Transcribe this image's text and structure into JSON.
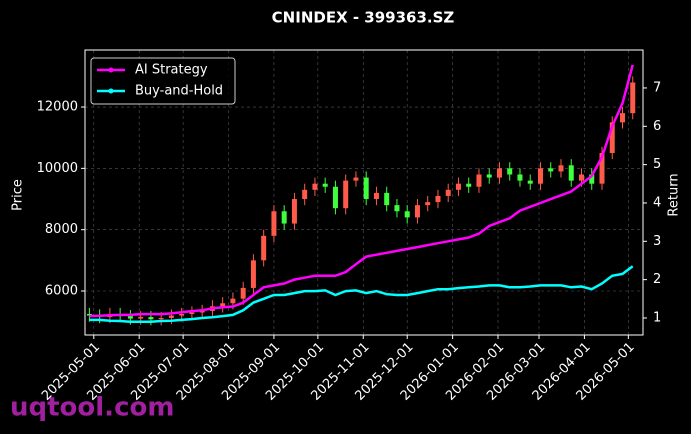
{
  "chart_data": {
    "type": "candlestick",
    "title": "CNINDEX - 399363.SZ",
    "ylabel": "Price",
    "y2label": "Return",
    "x": [
      "2025-04-28",
      "2025-05-05",
      "2025-05-12",
      "2025-05-19",
      "2025-05-26",
      "2025-06-02",
      "2025-06-09",
      "2025-06-16",
      "2025-06-23",
      "2025-06-30",
      "2025-07-07",
      "2025-07-14",
      "2025-07-21",
      "2025-07-28",
      "2025-08-04",
      "2025-08-11",
      "2025-08-18",
      "2025-08-25",
      "2025-09-01",
      "2025-09-08",
      "2025-09-15",
      "2025-09-22",
      "2025-09-29",
      "2025-10-06",
      "2025-10-13",
      "2025-10-20",
      "2025-10-27",
      "2025-11-03",
      "2025-11-10",
      "2025-11-17",
      "2025-11-24",
      "2025-12-01",
      "2025-12-08",
      "2025-12-15",
      "2025-12-22",
      "2025-12-29",
      "2026-01-05",
      "2026-01-12",
      "2026-01-19",
      "2026-01-26",
      "2026-02-02",
      "2026-02-09",
      "2026-02-16",
      "2026-02-23",
      "2026-03-02",
      "2026-03-09",
      "2026-03-16",
      "2026-03-23",
      "2026-03-30",
      "2026-04-06",
      "2026-04-13",
      "2026-04-20",
      "2026-04-27",
      "2026-05-04"
    ],
    "open": [
      5250,
      5200,
      5150,
      5250,
      5180,
      5100,
      5150,
      5080,
      5120,
      5200,
      5250,
      5300,
      5350,
      5500,
      5600,
      5750,
      6100,
      7000,
      7800,
      8600,
      8200,
      9000,
      9300,
      9500,
      9400,
      8700,
      9600,
      9700,
      9000,
      9200,
      8800,
      8600,
      8400,
      8800,
      8900,
      9100,
      9300,
      9500,
      9400,
      9800,
      9700,
      10000,
      9800,
      9600,
      9500,
      10000,
      9900,
      10100,
      9600,
      9800,
      9500,
      10500,
      11500,
      11800
    ],
    "high": [
      5450,
      5400,
      5450,
      5450,
      5380,
      5350,
      5350,
      5320,
      5400,
      5450,
      5500,
      5550,
      5700,
      5800,
      5950,
      6300,
      7200,
      8000,
      8800,
      8800,
      9200,
      9500,
      9700,
      9700,
      9600,
      9800,
      9900,
      9900,
      9400,
      9400,
      9000,
      8800,
      9000,
      9100,
      9300,
      9500,
      9700,
      9700,
      10000,
      10000,
      10200,
      10200,
      10000,
      9800,
      10200,
      10200,
      10300,
      10300,
      10000,
      10000,
      10700,
      11700,
      12000,
      13000
    ],
    "low": [
      5000,
      4950,
      4950,
      4980,
      4900,
      4900,
      4880,
      4880,
      4920,
      5000,
      5050,
      5100,
      5150,
      5300,
      5400,
      5550,
      5900,
      6800,
      7600,
      8000,
      8000,
      8800,
      9100,
      9200,
      8500,
      8500,
      9400,
      8800,
      8800,
      8600,
      8400,
      8200,
      8200,
      8600,
      8700,
      8900,
      9100,
      9200,
      9200,
      9500,
      9500,
      9600,
      9400,
      9300,
      9300,
      9700,
      9700,
      9400,
      9400,
      9300,
      9300,
      10300,
      11300,
      11600
    ],
    "close": [
      5200,
      5150,
      5250,
      5180,
      5100,
      5150,
      5080,
      5120,
      5200,
      5250,
      5300,
      5350,
      5500,
      5600,
      5750,
      6100,
      7000,
      7800,
      8600,
      8200,
      9000,
      9300,
      9500,
      9400,
      8700,
      9600,
      9700,
      9000,
      9200,
      8800,
      8600,
      8400,
      8800,
      8900,
      9100,
      9300,
      9500,
      9400,
      9800,
      9700,
      10000,
      9800,
      9600,
      9500,
      10000,
      9900,
      10100,
      9600,
      9800,
      9500,
      10500,
      11500,
      11800,
      12800
    ],
    "up_color": "#ff5a4a",
    "down_color": "#3dff3d",
    "series": [
      {
        "name": "AI Strategy",
        "color": "#ff00ff",
        "axis": "y2",
        "values": [
          1.05,
          1.06,
          1.07,
          1.08,
          1.08,
          1.1,
          1.1,
          1.1,
          1.12,
          1.15,
          1.18,
          1.2,
          1.25,
          1.28,
          1.3,
          1.4,
          1.6,
          1.8,
          1.85,
          1.9,
          2.0,
          2.05,
          2.1,
          2.1,
          2.1,
          2.2,
          2.4,
          2.6,
          2.65,
          2.7,
          2.75,
          2.8,
          2.85,
          2.9,
          2.95,
          3.0,
          3.05,
          3.1,
          3.2,
          3.4,
          3.5,
          3.6,
          3.8,
          3.9,
          4.0,
          4.1,
          4.2,
          4.3,
          4.5,
          4.7,
          5.2,
          6.0,
          6.6,
          7.6
        ]
      },
      {
        "name": "Buy-and-Hold",
        "color": "#00ffff",
        "axis": "y2",
        "values": [
          0.95,
          0.95,
          0.93,
          0.92,
          0.9,
          0.9,
          0.9,
          0.92,
          0.93,
          0.95,
          0.97,
          1.0,
          1.02,
          1.05,
          1.08,
          1.2,
          1.4,
          1.5,
          1.6,
          1.6,
          1.65,
          1.7,
          1.7,
          1.72,
          1.6,
          1.7,
          1.72,
          1.65,
          1.7,
          1.62,
          1.6,
          1.6,
          1.65,
          1.7,
          1.75,
          1.75,
          1.78,
          1.8,
          1.82,
          1.85,
          1.85,
          1.8,
          1.8,
          1.82,
          1.85,
          1.85,
          1.85,
          1.8,
          1.82,
          1.75,
          1.9,
          2.1,
          2.15,
          2.35
        ]
      }
    ],
    "xlim": [
      "2025-04-25",
      "2026-05-11"
    ],
    "xticks": [
      "2025-05-01",
      "2025-06-01",
      "2025-07-01",
      "2025-08-01",
      "2025-09-01",
      "2025-10-01",
      "2025-11-01",
      "2025-12-01",
      "2026-01-01",
      "2026-02-01",
      "2026-03-01",
      "2026-04-01",
      "2026-05-01"
    ],
    "ylim": [
      4565,
      13860
    ],
    "yticks": [
      6000,
      8000,
      10000,
      12000
    ],
    "y2lim": [
      0.556,
      7.99
    ],
    "y2ticks": [
      1,
      2,
      3,
      4,
      5,
      6,
      7
    ],
    "grid": true,
    "legend": "upper left"
  },
  "watermark": "uqtool.com"
}
